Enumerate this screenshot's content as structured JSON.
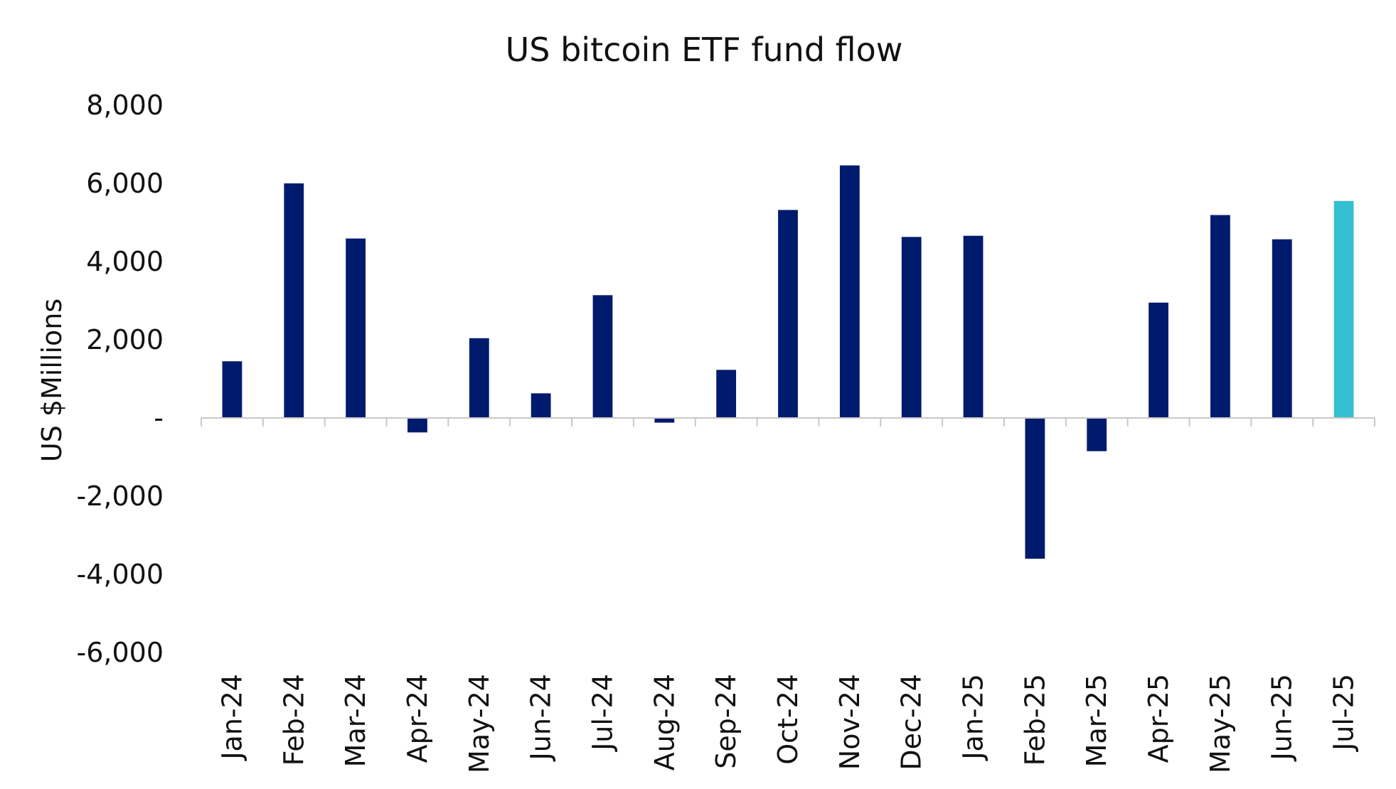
{
  "chart_data": {
    "type": "bar",
    "title": "US bitcoin ETF fund flow",
    "xlabel": "",
    "ylabel": "US $Millions",
    "ylim": [
      -6000,
      8000
    ],
    "yticks": [
      8000,
      6000,
      4000,
      2000,
      0,
      -2000,
      -4000,
      -6000
    ],
    "ytick_labels": [
      "8,000",
      "6,000",
      "4,000",
      "2,000",
      "-",
      "-2,000",
      "-4,000",
      "-6,000"
    ],
    "grid": false,
    "legend": "none",
    "categories": [
      "Jan-24",
      "Feb-24",
      "Mar-24",
      "Apr-24",
      "May-24",
      "Jun-24",
      "Jul-24",
      "Aug-24",
      "Sep-24",
      "Oct-24",
      "Nov-24",
      "Dec-24",
      "Jan-25",
      "Feb-25",
      "Mar-25",
      "Apr-25",
      "May-25",
      "Jun-25",
      "Jul-25"
    ],
    "values": [
      1450,
      6000,
      4590,
      -370,
      2040,
      630,
      3140,
      -120,
      1230,
      5320,
      6460,
      4630,
      4660,
      -3600,
      -850,
      2950,
      5190,
      4570,
      5550
    ],
    "colors": {
      "default": "#001a6e",
      "highlight": "#34c0d0",
      "axis": "#c8c8c8",
      "text": "#111111"
    },
    "highlight_category": "Jul-25"
  }
}
